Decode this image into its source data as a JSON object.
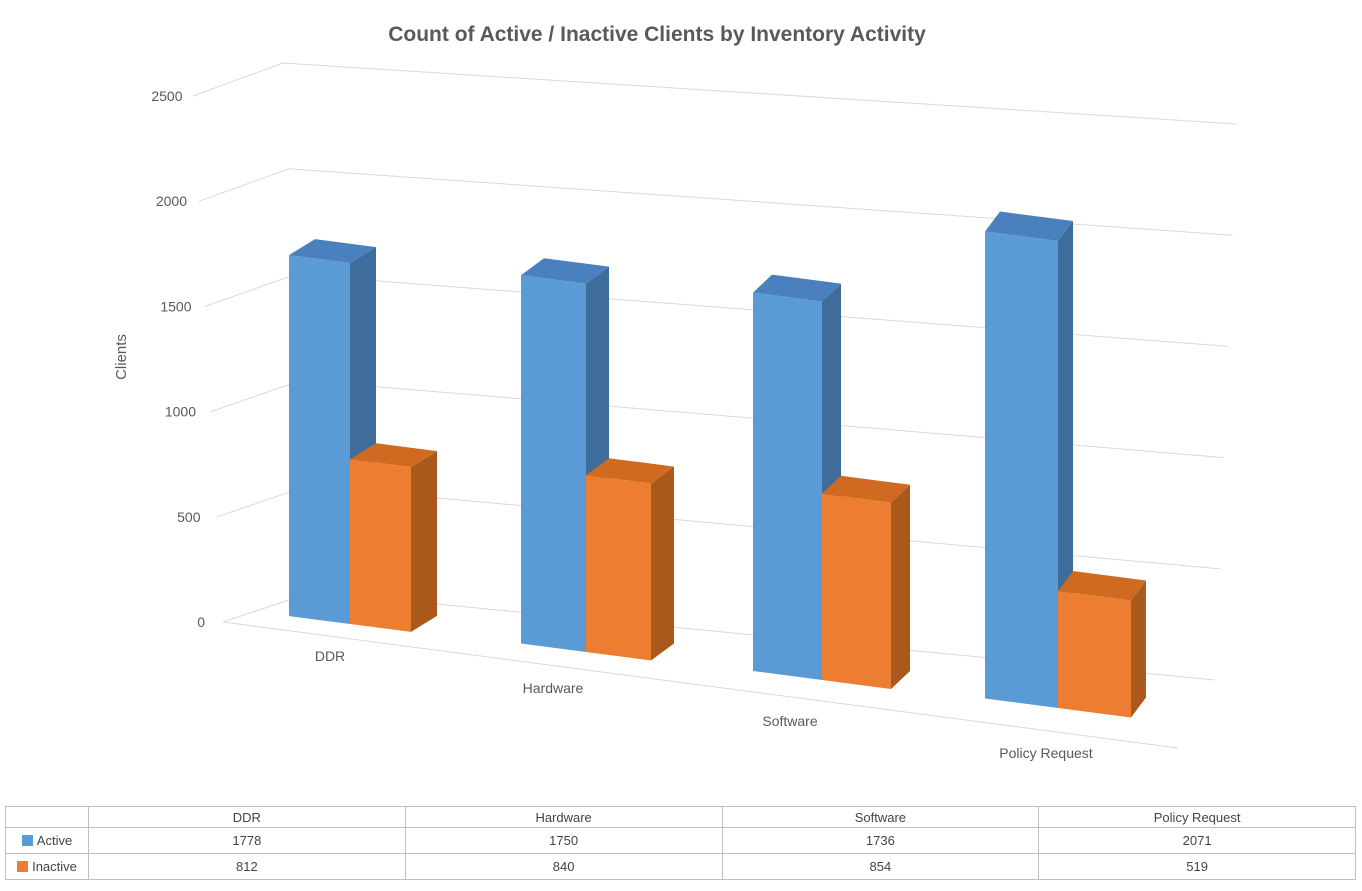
{
  "page": {
    "background": "#FFFFFF"
  },
  "chart_data": {
    "type": "bar",
    "variant": "3d-clustered-column",
    "title": "Count of Active / Inactive Clients by Inventory Activity",
    "xlabel": "",
    "ylabel": "Clients",
    "categories": [
      "DDR",
      "Hardware",
      "Software",
      "Policy Request"
    ],
    "series": [
      {
        "name": "Active",
        "values": [
          1778,
          1750,
          1736,
          2071
        ],
        "color": "#5B9BD5",
        "color_top": "#4B80BE",
        "color_side": "#3E6C9B"
      },
      {
        "name": "Inactive",
        "values": [
          812,
          840,
          854,
          519
        ],
        "color": "#ED7D31",
        "color_top": "#CF6A20",
        "color_side": "#AA581C"
      }
    ],
    "ylim": [
      0,
      2500
    ],
    "yticks": [
      0,
      500,
      1000,
      1500,
      2000,
      2500
    ],
    "grid": true,
    "gridline_color": "#D9D9D9",
    "text_color": "#595959",
    "legend_position": "data-table-left"
  }
}
